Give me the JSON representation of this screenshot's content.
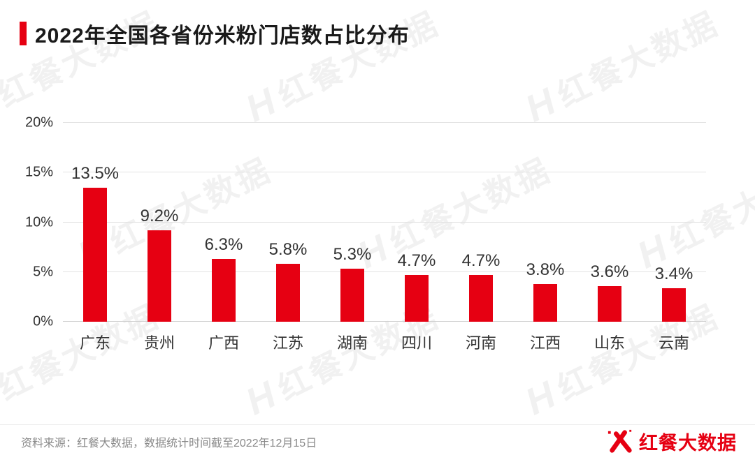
{
  "title": "2022年全国各省份米粉门店数占比分布",
  "accent_color": "#e60012",
  "watermark": {
    "monogram": "H",
    "text": "红餐大数据"
  },
  "chart_data": {
    "type": "bar",
    "title": "2022年全国各省份米粉门店数占比分布",
    "categories": [
      "广东",
      "贵州",
      "广西",
      "江苏",
      "湖南",
      "四川",
      "河南",
      "江西",
      "山东",
      "云南"
    ],
    "values": [
      13.5,
      9.2,
      6.3,
      5.8,
      5.3,
      4.7,
      4.7,
      3.8,
      3.6,
      3.4
    ],
    "value_labels": [
      "13.5%",
      "9.2%",
      "6.3%",
      "5.8%",
      "5.3%",
      "4.7%",
      "4.7%",
      "3.8%",
      "3.6%",
      "3.4%"
    ],
    "xlabel": "",
    "ylabel": "",
    "ylim": [
      0,
      20
    ],
    "yticks": [
      "0%",
      "5%",
      "10%",
      "15%",
      "20%"
    ],
    "bar_color": "#e60012",
    "grid": true,
    "legend": false
  },
  "footer": {
    "source_text": "资料来源：红餐大数据，数据统计时间截至2022年12月15日",
    "logo_text": "红餐大数据"
  }
}
